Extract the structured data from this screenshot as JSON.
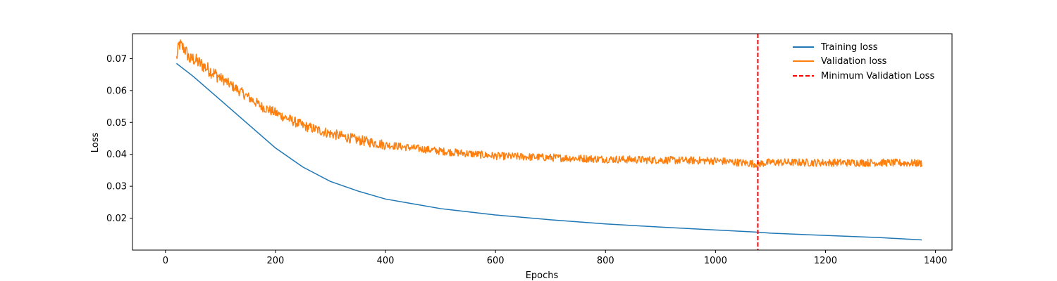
{
  "chart_data": {
    "type": "line",
    "title": "",
    "xlabel": "Epochs",
    "ylabel": "Loss",
    "xlim": [
      -60,
      1430
    ],
    "ylim": [
      0.01,
      0.0778
    ],
    "xticks": [
      0,
      200,
      400,
      600,
      800,
      1000,
      1200,
      1400
    ],
    "yticks": [
      0.02,
      0.03,
      0.04,
      0.05,
      0.06,
      0.07
    ],
    "xtick_labels": [
      "0",
      "200",
      "400",
      "600",
      "800",
      "1000",
      "1200",
      "1400"
    ],
    "ytick_labels": [
      "0.02",
      "0.03",
      "0.04",
      "0.05",
      "0.06",
      "0.07"
    ],
    "grid": false,
    "legend_position": "top-right",
    "series": [
      {
        "name": "Training loss",
        "color": "#1f77b4",
        "style": "solid",
        "x": [
          20,
          50,
          100,
          150,
          200,
          250,
          300,
          350,
          400,
          450,
          500,
          600,
          700,
          800,
          900,
          1000,
          1077,
          1100,
          1200,
          1300,
          1375
        ],
        "y": [
          0.0685,
          0.0645,
          0.057,
          0.0495,
          0.042,
          0.036,
          0.0315,
          0.0285,
          0.026,
          0.0245,
          0.023,
          0.021,
          0.0195,
          0.0182,
          0.0172,
          0.0163,
          0.0156,
          0.0153,
          0.0146,
          0.0139,
          0.0132
        ]
      },
      {
        "name": "Validation loss",
        "color": "#ff7f0e",
        "style": "solid",
        "x": [
          20,
          25,
          35,
          45,
          50,
          75,
          100,
          125,
          150,
          175,
          200,
          250,
          300,
          350,
          400,
          450,
          500,
          600,
          700,
          800,
          900,
          1000,
          1077,
          1100,
          1200,
          1300,
          1375
        ],
        "y": [
          0.07,
          0.0745,
          0.073,
          0.0695,
          0.07,
          0.067,
          0.064,
          0.061,
          0.058,
          0.055,
          0.053,
          0.049,
          0.0465,
          0.0445,
          0.043,
          0.042,
          0.041,
          0.0395,
          0.039,
          0.0385,
          0.0382,
          0.038,
          0.037,
          0.0375,
          0.0374,
          0.0374,
          0.0372
        ]
      }
    ],
    "vline": {
      "name": "Minimum Validation Loss",
      "x": 1077,
      "color": "#ff0000",
      "style": "dashed"
    }
  }
}
